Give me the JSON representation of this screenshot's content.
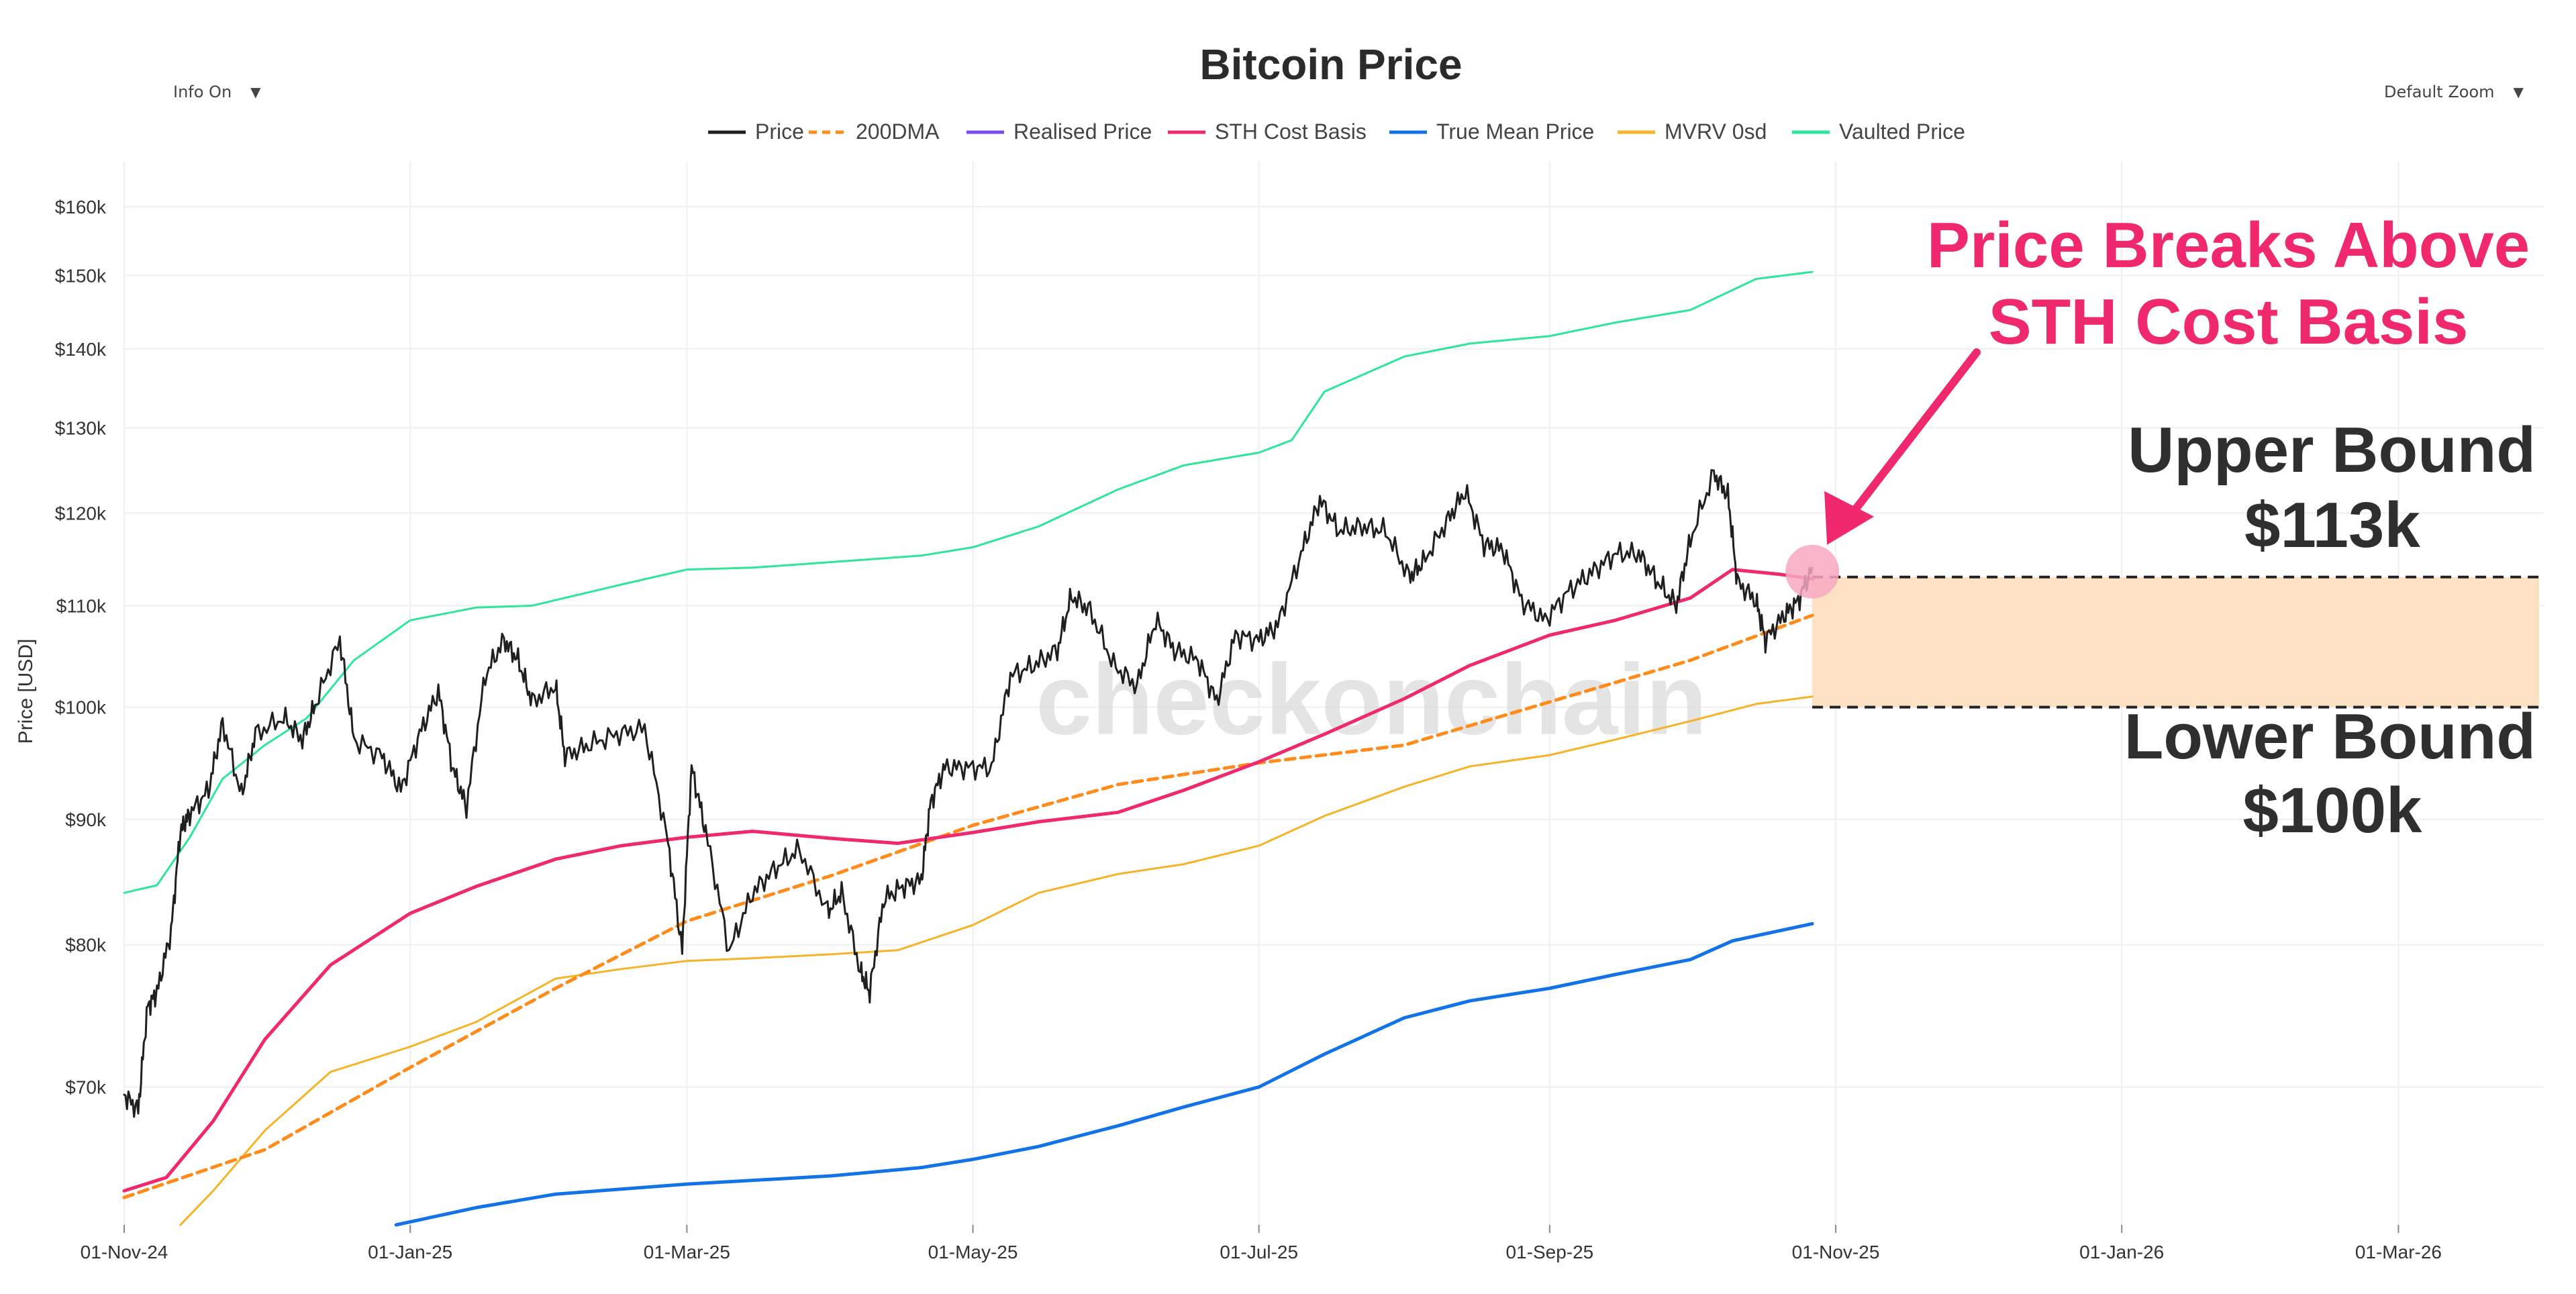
{
  "controls": {
    "info_label": "Info On",
    "zoom_label": "Default Zoom"
  },
  "chart_data": {
    "type": "line",
    "title": "Bitcoin Price",
    "ylabel": "Price [USD]",
    "xlabel": "",
    "y_scale": "log",
    "ylim": [
      61500,
      167000
    ],
    "xlim": [
      "2024-11-01",
      "2026-04-01"
    ],
    "grid": true,
    "legend_position": "top",
    "y_ticks": [
      {
        "value": 70000,
        "label": "$70k"
      },
      {
        "value": 80000,
        "label": "$80k"
      },
      {
        "value": 90000,
        "label": "$90k"
      },
      {
        "value": 100000,
        "label": "$100k"
      },
      {
        "value": 110000,
        "label": "$110k"
      },
      {
        "value": 120000,
        "label": "$120k"
      },
      {
        "value": 130000,
        "label": "$130k"
      },
      {
        "value": 140000,
        "label": "$140k"
      },
      {
        "value": 150000,
        "label": "$150k"
      },
      {
        "value": 160000,
        "label": "$160k"
      }
    ],
    "x_ticks": [
      {
        "date": "2024-11-01",
        "label": "01-Nov-24"
      },
      {
        "date": "2025-01-01",
        "label": "01-Jan-25"
      },
      {
        "date": "2025-03-01",
        "label": "01-Mar-25"
      },
      {
        "date": "2025-05-01",
        "label": "01-May-25"
      },
      {
        "date": "2025-07-01",
        "label": "01-Jul-25"
      },
      {
        "date": "2025-09-01",
        "label": "01-Sep-25"
      },
      {
        "date": "2025-11-01",
        "label": "01-Nov-25"
      },
      {
        "date": "2026-01-01",
        "label": "01-Jan-26"
      },
      {
        "date": "2026-03-01",
        "label": "01-Mar-26"
      }
    ],
    "watermark": "checkonchain",
    "series": [
      {
        "name": "Price",
        "color": "#1f1f1f",
        "style": "solid",
        "width": 3,
        "points": [
          [
            "2024-11-01",
            69500
          ],
          [
            "2024-11-04",
            68500
          ],
          [
            "2024-11-06",
            75500
          ],
          [
            "2024-11-08",
            76500
          ],
          [
            "2024-11-11",
            81000
          ],
          [
            "2024-11-13",
            89000
          ],
          [
            "2024-11-15",
            90500
          ],
          [
            "2024-11-19",
            92500
          ],
          [
            "2024-11-22",
            98500
          ],
          [
            "2024-11-26",
            92000
          ],
          [
            "2024-11-29",
            97500
          ],
          [
            "2024-12-05",
            99000
          ],
          [
            "2024-12-09",
            97000
          ],
          [
            "2024-12-12",
            100500
          ],
          [
            "2024-12-17",
            106500
          ],
          [
            "2024-12-20",
            97000
          ],
          [
            "2024-12-26",
            95500
          ],
          [
            "2024-12-30",
            92500
          ],
          [
            "2025-01-03",
            97500
          ],
          [
            "2025-01-07",
            101500
          ],
          [
            "2025-01-10",
            94500
          ],
          [
            "2025-01-13",
            91000
          ],
          [
            "2025-01-17",
            103000
          ],
          [
            "2025-01-21",
            106500
          ],
          [
            "2025-01-24",
            104500
          ],
          [
            "2025-01-27",
            100500
          ],
          [
            "2025-02-01",
            102000
          ],
          [
            "2025-02-03",
            95500
          ],
          [
            "2025-02-08",
            96500
          ],
          [
            "2025-02-14",
            97500
          ],
          [
            "2025-02-20",
            98000
          ],
          [
            "2025-02-25",
            88000
          ],
          [
            "2025-02-28",
            79500
          ],
          [
            "2025-03-02",
            94500
          ],
          [
            "2025-03-05",
            89000
          ],
          [
            "2025-03-10",
            79500
          ],
          [
            "2025-03-15",
            84000
          ],
          [
            "2025-03-20",
            86000
          ],
          [
            "2025-03-25",
            87500
          ],
          [
            "2025-03-31",
            82500
          ],
          [
            "2025-04-03",
            84000
          ],
          [
            "2025-04-07",
            78000
          ],
          [
            "2025-04-09",
            76500
          ],
          [
            "2025-04-12",
            83500
          ],
          [
            "2025-04-16",
            84500
          ],
          [
            "2025-04-20",
            85000
          ],
          [
            "2025-04-22",
            91500
          ],
          [
            "2025-04-25",
            94500
          ],
          [
            "2025-04-30",
            94500
          ],
          [
            "2025-05-05",
            94500
          ],
          [
            "2025-05-09",
            103000
          ],
          [
            "2025-05-14",
            104000
          ],
          [
            "2025-05-19",
            105500
          ],
          [
            "2025-05-22",
            111000
          ],
          [
            "2025-05-26",
            109500
          ],
          [
            "2025-05-31",
            104000
          ],
          [
            "2025-06-05",
            102000
          ],
          [
            "2025-06-09",
            108500
          ],
          [
            "2025-06-13",
            105500
          ],
          [
            "2025-06-18",
            104500
          ],
          [
            "2025-06-22",
            100500
          ],
          [
            "2025-06-26",
            107000
          ],
          [
            "2025-07-01",
            106500
          ],
          [
            "2025-07-05",
            108000
          ],
          [
            "2025-07-10",
            115500
          ],
          [
            "2025-07-14",
            121500
          ],
          [
            "2025-07-18",
            118000
          ],
          [
            "2025-07-23",
            118500
          ],
          [
            "2025-07-28",
            118000
          ],
          [
            "2025-08-02",
            113000
          ],
          [
            "2025-08-05",
            114500
          ],
          [
            "2025-08-10",
            119000
          ],
          [
            "2025-08-14",
            122500
          ],
          [
            "2025-08-18",
            116500
          ],
          [
            "2025-08-22",
            116000
          ],
          [
            "2025-08-26",
            110500
          ],
          [
            "2025-08-31",
            108500
          ],
          [
            "2025-09-05",
            111500
          ],
          [
            "2025-09-10",
            113500
          ],
          [
            "2025-09-15",
            115500
          ],
          [
            "2025-09-20",
            115500
          ],
          [
            "2025-09-24",
            112500
          ],
          [
            "2025-09-28",
            110000
          ],
          [
            "2025-10-01",
            117000
          ],
          [
            "2025-10-06",
            124500
          ],
          [
            "2025-10-09",
            122000
          ],
          [
            "2025-10-11",
            112500
          ],
          [
            "2025-10-15",
            110500
          ],
          [
            "2025-10-17",
            106500
          ],
          [
            "2025-10-21",
            109000
          ],
          [
            "2025-10-24",
            110500
          ],
          [
            "2025-10-27",
            114000
          ]
        ]
      },
      {
        "name": "200DMA",
        "color": "#ff8c1a",
        "style": "dashed",
        "width": 5,
        "points": [
          [
            "2024-11-01",
            63100
          ],
          [
            "2024-12-01",
            66000
          ],
          [
            "2025-01-01",
            71300
          ],
          [
            "2025-02-01",
            76800
          ],
          [
            "2025-03-01",
            81800
          ],
          [
            "2025-04-01",
            85400
          ],
          [
            "2025-05-01",
            89500
          ],
          [
            "2025-06-01",
            93000
          ],
          [
            "2025-07-01",
            94900
          ],
          [
            "2025-08-01",
            96500
          ],
          [
            "2025-09-01",
            100500
          ],
          [
            "2025-10-01",
            104500
          ],
          [
            "2025-10-27",
            109000
          ]
        ]
      },
      {
        "name": "Realised Price",
        "color": "#7b4cf0",
        "style": "solid",
        "width": 4,
        "points": []
      },
      {
        "name": "STH Cost Basis",
        "color": "#f0286e",
        "style": "solid",
        "width": 5,
        "points": [
          [
            "2024-11-01",
            63500
          ],
          [
            "2024-11-10",
            64300
          ],
          [
            "2024-11-20",
            67800
          ],
          [
            "2024-12-01",
            73200
          ],
          [
            "2024-12-15",
            78500
          ],
          [
            "2025-01-01",
            82400
          ],
          [
            "2025-01-15",
            84500
          ],
          [
            "2025-02-01",
            86700
          ],
          [
            "2025-02-15",
            87800
          ],
          [
            "2025-03-01",
            88500
          ],
          [
            "2025-03-15",
            89000
          ],
          [
            "2025-04-01",
            88400
          ],
          [
            "2025-04-15",
            88000
          ],
          [
            "2025-05-01",
            88900
          ],
          [
            "2025-05-15",
            89800
          ],
          [
            "2025-06-01",
            90600
          ],
          [
            "2025-06-15",
            92500
          ],
          [
            "2025-07-01",
            95000
          ],
          [
            "2025-07-15",
            97500
          ],
          [
            "2025-08-01",
            100800
          ],
          [
            "2025-08-15",
            104000
          ],
          [
            "2025-09-01",
            107000
          ],
          [
            "2025-09-15",
            108500
          ],
          [
            "2025-10-01",
            110800
          ],
          [
            "2025-10-10",
            113800
          ],
          [
            "2025-10-20",
            113300
          ],
          [
            "2025-10-27",
            112800
          ]
        ]
      },
      {
        "name": "True Mean Price",
        "color": "#1273e8",
        "style": "solid",
        "width": 5,
        "points": [
          [
            "2024-12-29",
            61500
          ],
          [
            "2025-01-15",
            62500
          ],
          [
            "2025-02-01",
            63300
          ],
          [
            "2025-03-01",
            63900
          ],
          [
            "2025-04-01",
            64400
          ],
          [
            "2025-04-20",
            64900
          ],
          [
            "2025-05-01",
            65400
          ],
          [
            "2025-05-15",
            66200
          ],
          [
            "2025-06-01",
            67500
          ],
          [
            "2025-06-15",
            68700
          ],
          [
            "2025-07-01",
            70000
          ],
          [
            "2025-07-15",
            72200
          ],
          [
            "2025-08-01",
            74700
          ],
          [
            "2025-08-15",
            75900
          ],
          [
            "2025-09-01",
            76800
          ],
          [
            "2025-09-15",
            77800
          ],
          [
            "2025-10-01",
            78900
          ],
          [
            "2025-10-10",
            80300
          ],
          [
            "2025-10-27",
            81600
          ]
        ]
      },
      {
        "name": "MVRV 0sd",
        "color": "#f5b325",
        "style": "solid",
        "width": 3,
        "points": [
          [
            "2024-11-13",
            61500
          ],
          [
            "2024-11-20",
            63500
          ],
          [
            "2024-12-01",
            67200
          ],
          [
            "2024-12-15",
            71000
          ],
          [
            "2025-01-01",
            72700
          ],
          [
            "2025-01-15",
            74400
          ],
          [
            "2025-02-01",
            77500
          ],
          [
            "2025-02-15",
            78200
          ],
          [
            "2025-03-01",
            78800
          ],
          [
            "2025-03-15",
            79000
          ],
          [
            "2025-04-01",
            79300
          ],
          [
            "2025-04-15",
            79600
          ],
          [
            "2025-05-01",
            81500
          ],
          [
            "2025-05-15",
            84000
          ],
          [
            "2025-06-01",
            85500
          ],
          [
            "2025-06-15",
            86300
          ],
          [
            "2025-07-01",
            87800
          ],
          [
            "2025-07-15",
            90300
          ],
          [
            "2025-08-01",
            92800
          ],
          [
            "2025-08-15",
            94600
          ],
          [
            "2025-09-01",
            95600
          ],
          [
            "2025-09-15",
            97000
          ],
          [
            "2025-10-01",
            98700
          ],
          [
            "2025-10-15",
            100300
          ],
          [
            "2025-10-27",
            101000
          ]
        ]
      },
      {
        "name": "Vaulted Price",
        "color": "#2ee69a",
        "style": "solid",
        "width": 3,
        "points": [
          [
            "2024-11-01",
            84000
          ],
          [
            "2024-11-08",
            84600
          ],
          [
            "2024-11-15",
            88500
          ],
          [
            "2024-11-22",
            93500
          ],
          [
            "2024-12-01",
            96500
          ],
          [
            "2024-12-10",
            99000
          ],
          [
            "2024-12-20",
            104500
          ],
          [
            "2025-01-01",
            108500
          ],
          [
            "2025-01-15",
            109800
          ],
          [
            "2025-01-27",
            110000
          ],
          [
            "2025-02-15",
            112200
          ],
          [
            "2025-03-01",
            113800
          ],
          [
            "2025-03-15",
            114000
          ],
          [
            "2025-04-01",
            114600
          ],
          [
            "2025-04-20",
            115300
          ],
          [
            "2025-05-01",
            116200
          ],
          [
            "2025-05-15",
            118500
          ],
          [
            "2025-06-01",
            122700
          ],
          [
            "2025-06-15",
            125500
          ],
          [
            "2025-07-01",
            127000
          ],
          [
            "2025-07-08",
            128500
          ],
          [
            "2025-07-15",
            134500
          ],
          [
            "2025-08-01",
            139000
          ],
          [
            "2025-08-15",
            140700
          ],
          [
            "2025-09-01",
            141700
          ],
          [
            "2025-09-15",
            143500
          ],
          [
            "2025-10-01",
            145200
          ],
          [
            "2025-10-15",
            149500
          ],
          [
            "2025-10-27",
            150500
          ]
        ]
      }
    ],
    "band": {
      "start": "2025-10-27",
      "end": "2026-03-31",
      "low": 100000,
      "high": 113000,
      "color": "#fde1c4"
    },
    "marker": {
      "date": "2025-10-27",
      "value": 113000,
      "color": "#f7a8c1"
    },
    "annotations": {
      "breakout_line1": "Price Breaks Above",
      "breakout_line2": "STH Cost Basis",
      "upper_line1": "Upper Bound",
      "upper_line2": "$113k",
      "lower_line1": "Lower Bound",
      "lower_line2": "$100k",
      "breakout_color": "#f0286e",
      "bound_color": "#2f2f2f"
    }
  }
}
